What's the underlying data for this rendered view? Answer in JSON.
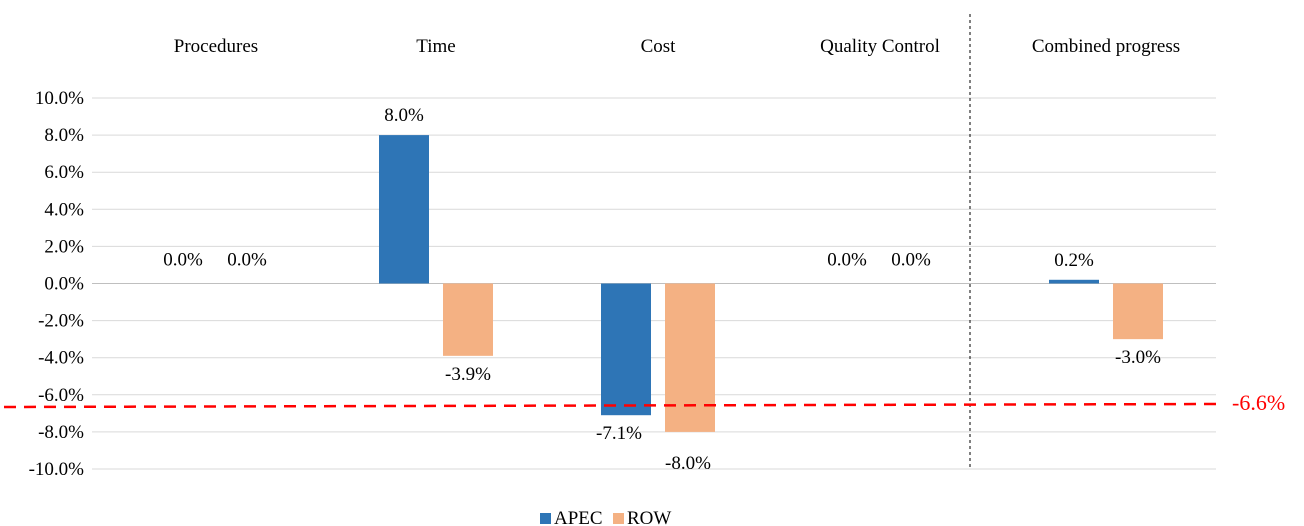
{
  "chart_data": {
    "type": "bar",
    "categories": [
      "Procedures",
      "Time",
      "Cost",
      "Quality Control",
      "Combined progress"
    ],
    "series": [
      {
        "name": "APEC",
        "values": [
          0.0,
          8.0,
          -7.1,
          0.0,
          0.2
        ],
        "labels": [
          "0.0%",
          "8.0%",
          "-7.1%",
          "0.0%",
          "0.2%"
        ],
        "color": "#2E75B6"
      },
      {
        "name": "ROW",
        "values": [
          0.0,
          -3.9,
          -8.0,
          0.0,
          -3.0
        ],
        "labels": [
          "0.0%",
          "-3.9%",
          "-8.0%",
          "0.0%",
          "-3.0%"
        ],
        "color": "#F4B183"
      }
    ],
    "ylim": [
      -10,
      10
    ],
    "yticks": [
      10,
      8,
      6,
      4,
      2,
      0,
      -2,
      -4,
      -6,
      -8,
      -10
    ],
    "ytick_labels": [
      "10.0%",
      "8.0%",
      "6.0%",
      "4.0%",
      "2.0%",
      "0.0%",
      "-2.0%",
      "-4.0%",
      "-6.0%",
      "-8.0%",
      "-10.0%"
    ],
    "grid": true,
    "legend_position": "bottom",
    "reference_line": {
      "value": -6.6,
      "label": "-6.6%",
      "color": "#FF0000",
      "style": "dashed"
    },
    "separator": {
      "between": [
        "Quality Control",
        "Combined progress"
      ],
      "style": "dashed",
      "color": "#000000"
    },
    "category_labels_position": "top"
  }
}
